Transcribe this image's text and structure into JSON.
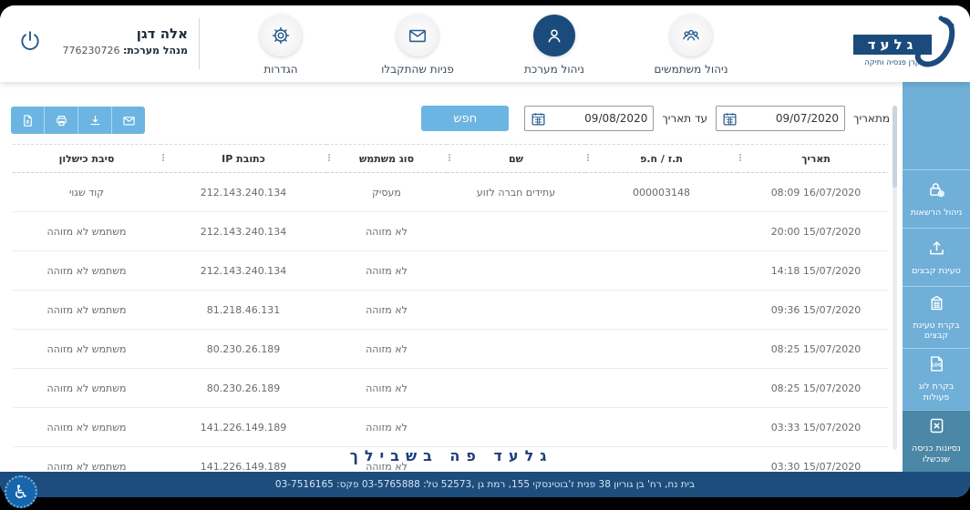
{
  "header": {
    "user": {
      "name": "אלה דגן",
      "role_label": "מנהל מערכת:",
      "role_number": "776230726"
    },
    "nav": [
      {
        "label": "הגדרות",
        "icon": "gear-icon",
        "active": false
      },
      {
        "label": "פניות שהתקבלו",
        "icon": "mail-icon",
        "active": false
      },
      {
        "label": "ניהול מערכת",
        "icon": "person-icon",
        "active": true
      },
      {
        "label": "ניהול משתמשים",
        "icon": "group-icon",
        "active": false
      }
    ],
    "logo": {
      "title": "גלעד",
      "subtitle": "קרן פנסיה ותיקה"
    }
  },
  "filters": {
    "from_label": "מתאריך",
    "from_value": "09/07/2020",
    "to_label": "עד תאריך",
    "to_value": "09/08/2020",
    "search_label": "חפש"
  },
  "toolbar_icons": [
    "excel-export-icon",
    "print-icon",
    "download-icon",
    "email-icon"
  ],
  "table": {
    "columns": [
      "תאריך",
      "ת.ז / ח.פ",
      "שם",
      "סוג משתמש",
      "כתובת IP",
      "סיבת כישלון"
    ],
    "rows": [
      [
        "16/07/2020 08:09",
        "000003148",
        "עתידים חברה לזוע",
        "מעסיק",
        "212.143.240.134",
        "קוד שגוי"
      ],
      [
        "15/07/2020 20:00",
        "",
        "",
        "לא מזוהה",
        "212.143.240.134",
        "משתמש לא מזוהה"
      ],
      [
        "15/07/2020 14:18",
        "",
        "",
        "לא מזוהה",
        "212.143.240.134",
        "משתמש לא מזוהה"
      ],
      [
        "15/07/2020 09:36",
        "",
        "",
        "לא מזוהה",
        "81.218.46.131",
        "משתמש לא מזוהה"
      ],
      [
        "15/07/2020 08:25",
        "",
        "",
        "לא מזוהה",
        "80.230.26.189",
        "משתמש לא מזוהה"
      ],
      [
        "15/07/2020 08:25",
        "",
        "",
        "לא מזוהה",
        "80.230.26.189",
        "משתמש לא מזוהה"
      ],
      [
        "15/07/2020 03:33",
        "",
        "",
        "לא מזוהה",
        "141.226.149.189",
        "משתמש לא מזוהה"
      ],
      [
        "15/07/2020 03:30",
        "",
        "",
        "לא מזוהה",
        "141.226.149.189",
        "משתמש לא מזוהה"
      ]
    ]
  },
  "sidebar": {
    "items": [
      {
        "label": "ניהול הרשאות",
        "icon": "lock-eye-icon",
        "active": false
      },
      {
        "label": "טעינת קבצים",
        "icon": "upload-icon",
        "active": false
      },
      {
        "label": "בקרת טעינת קבצים",
        "icon": "building-icon",
        "active": false
      },
      {
        "label": "בקרת לוג פעולות",
        "icon": "log-icon",
        "active": false
      },
      {
        "label": "נסיונות כניסה שנכשלו",
        "icon": "failed-login-icon",
        "active": true
      }
    ]
  },
  "tagline": "גלעד פה בשבילך",
  "footer": {
    "address": "בית נח, רח' בן גוריון 38 פנית ז'בוטינסקי 155, רמת גן ,52573 טל: 03-5765888 פקס: 03-7516165"
  },
  "icons": {
    "sort": "⋮",
    "accessibility": "♿"
  },
  "colors": {
    "accent_blue": "#6cb5e2",
    "navy": "#1b4b7c",
    "sidebar_blue": "#6fafd8",
    "sidebar_active": "#4b87a6",
    "footer_navy": "#1d4d7d"
  }
}
